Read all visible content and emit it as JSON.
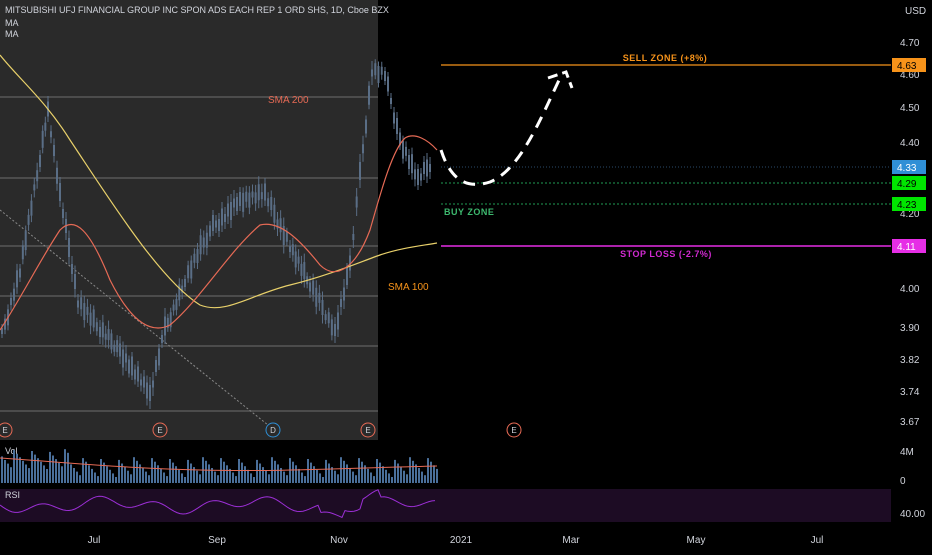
{
  "header": {
    "symbol": "MITSUBISHI UFJ FINANCIAL GROUP INC SPON ADS EACH REP 1 ORD SHS, 1D, Cboe BZX",
    "indicator_1": "MA",
    "indicator_2": "MA"
  },
  "currency": "USD",
  "chart_data": {
    "type": "candlestick",
    "price_axis": {
      "ticks": [
        "4.70",
        "4.60",
        "4.50",
        "4.40",
        "4.20",
        "4.00",
        "3.90",
        "3.82",
        "3.74",
        "3.67"
      ],
      "scale": "log"
    },
    "time_axis": {
      "ticks": [
        "Jul",
        "Sep",
        "Nov",
        "2021",
        "Mar",
        "May",
        "Jul"
      ]
    },
    "price_labels": [
      {
        "value": "4.63",
        "color": "#f7931a",
        "text_color": "#000000"
      },
      {
        "value": "4.33",
        "color": "#2f8fd6",
        "text_color": "#ffffff"
      },
      {
        "value": "4.29",
        "color": "#00e600",
        "text_color": "#000000"
      },
      {
        "value": "4.23",
        "color": "#00e600",
        "text_color": "#000000"
      },
      {
        "value": "4.11",
        "color": "#e62ee6",
        "text_color": "#ffffff"
      }
    ],
    "levels": [
      {
        "name": "SELL ZONE (+8%)",
        "price": 4.63,
        "color": "#f7931a"
      },
      {
        "name": "BUY ZONE",
        "price": 4.29,
        "color": "#1f9d55"
      },
      {
        "name": "BUY ZONE",
        "price": 4.23,
        "color": "#1f9d55"
      },
      {
        "name": "STOP LOSS (-2.7%)",
        "price": 4.11,
        "color": "#e62ee6"
      }
    ],
    "annotations": {
      "sma200": "SMA 200",
      "sma100": "SMA 100",
      "sell_zone": "SELL ZONE (+8%)",
      "buy_zone": "BUY ZONE",
      "stop_loss": "STOP LOSS (-2.7%)"
    },
    "earnings_markers": [
      "E",
      "E",
      "D",
      "E",
      "E"
    ],
    "volume": {
      "label": "Vol",
      "axis_ticks": [
        "4M",
        "0"
      ]
    },
    "rsi": {
      "label": "RSI",
      "axis_ticks": [
        "40.00"
      ]
    },
    "colors": {
      "background": "#000000",
      "history_panel": "#2a2a2a",
      "up_candle": "#5a6e86",
      "sma200": "#e8d06a",
      "sma100": "#e66a55",
      "rsi_line": "#9c2fd6",
      "rsi_band": "#1d0c24",
      "axis_text": "#d1d4dc",
      "gridline": "#6e6e6e",
      "forecast_path": "#ffffff"
    }
  }
}
